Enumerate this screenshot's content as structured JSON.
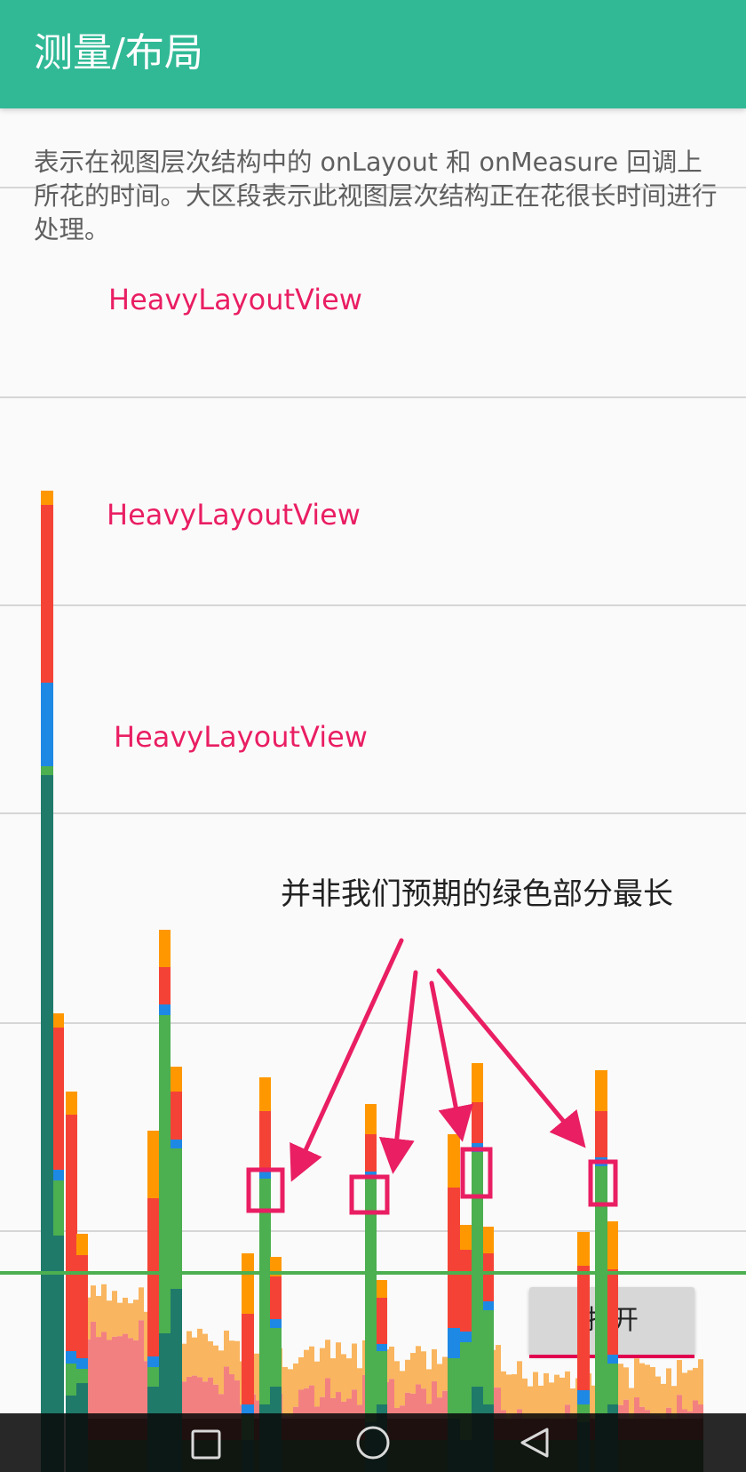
{
  "app_bar": {
    "title": "测量/布局"
  },
  "main": {
    "description": "表示在视图层次结构中的 onLayout 和 onMeasure 回调上所花的时间。大区段表示此视图层次结构正在花很长时间进行处理。",
    "heavy_layout_labels": [
      "HeavyLayoutView",
      "HeavyLayoutView",
      "HeavyLayoutView"
    ],
    "annotation": "并非我们预期的绿色部分最长",
    "open_button_label": "打开"
  },
  "profile_colors": {
    "draw": "#4CAF50",
    "measure_layout": "#2E7D32",
    "input": "#1E88E5",
    "animation": "#F44336",
    "misc": "#FF9800",
    "threshold_line": "#4CAF50",
    "highlight": "#E91E63"
  },
  "nav_bar": {
    "icons": [
      "recents-icon",
      "home-icon",
      "back-icon"
    ]
  }
}
